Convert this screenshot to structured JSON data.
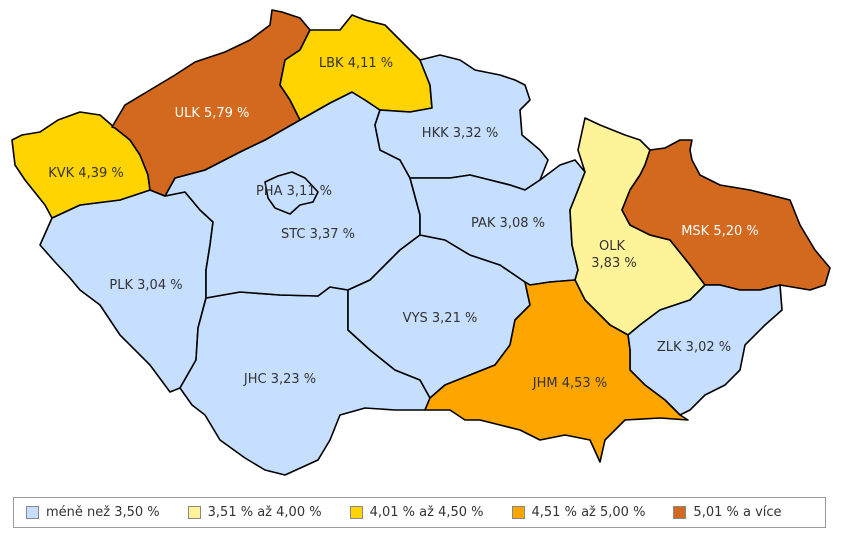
{
  "colors": {
    "c1": "#c7dfff",
    "c2": "#fff399",
    "c3": "#ffd400",
    "c4": "#ffa500",
    "c5": "#d2691e"
  },
  "regions": {
    "kvk": {
      "label": "KVK 4,39 %",
      "cls": "c3"
    },
    "ulk": {
      "label": "ULK 5,79 %",
      "cls": "c5"
    },
    "lbk": {
      "label": "LBK 4,11 %",
      "cls": "c3"
    },
    "hkk": {
      "label": "HKK 3,32 %",
      "cls": "c1"
    },
    "pha": {
      "label": "PHA 3,11 %",
      "cls": "c1"
    },
    "stc": {
      "label": "STC 3,37 %",
      "cls": "c1"
    },
    "pak": {
      "label": "PAK 3,08 %",
      "cls": "c1"
    },
    "olk": {
      "label_line1": "OLK",
      "label_line2": "3,83 %",
      "cls": "c2"
    },
    "msk": {
      "label": "MSK 5,20 %",
      "cls": "c5"
    },
    "plk": {
      "label": "PLK 3,04 %",
      "cls": "c1"
    },
    "vys": {
      "label": "VYS 3,21 %",
      "cls": "c1"
    },
    "jhc": {
      "label": "JHC 3,23 %",
      "cls": "c1"
    },
    "jhm": {
      "label": "JHM 4,53 %",
      "cls": "c4"
    },
    "zlk": {
      "label": "ZLK 3,02 %",
      "cls": "c1"
    }
  },
  "legend": {
    "items": [
      {
        "label": "méně než 3,50 %",
        "cls": "c1"
      },
      {
        "label": "3,51 % až 4,00 %",
        "cls": "c2"
      },
      {
        "label": "4,01 % až 4,50 %",
        "cls": "c3"
      },
      {
        "label": "4,51 % až 5,00 %",
        "cls": "c4"
      },
      {
        "label": "5,01 % a více",
        "cls": "c5"
      }
    ]
  }
}
